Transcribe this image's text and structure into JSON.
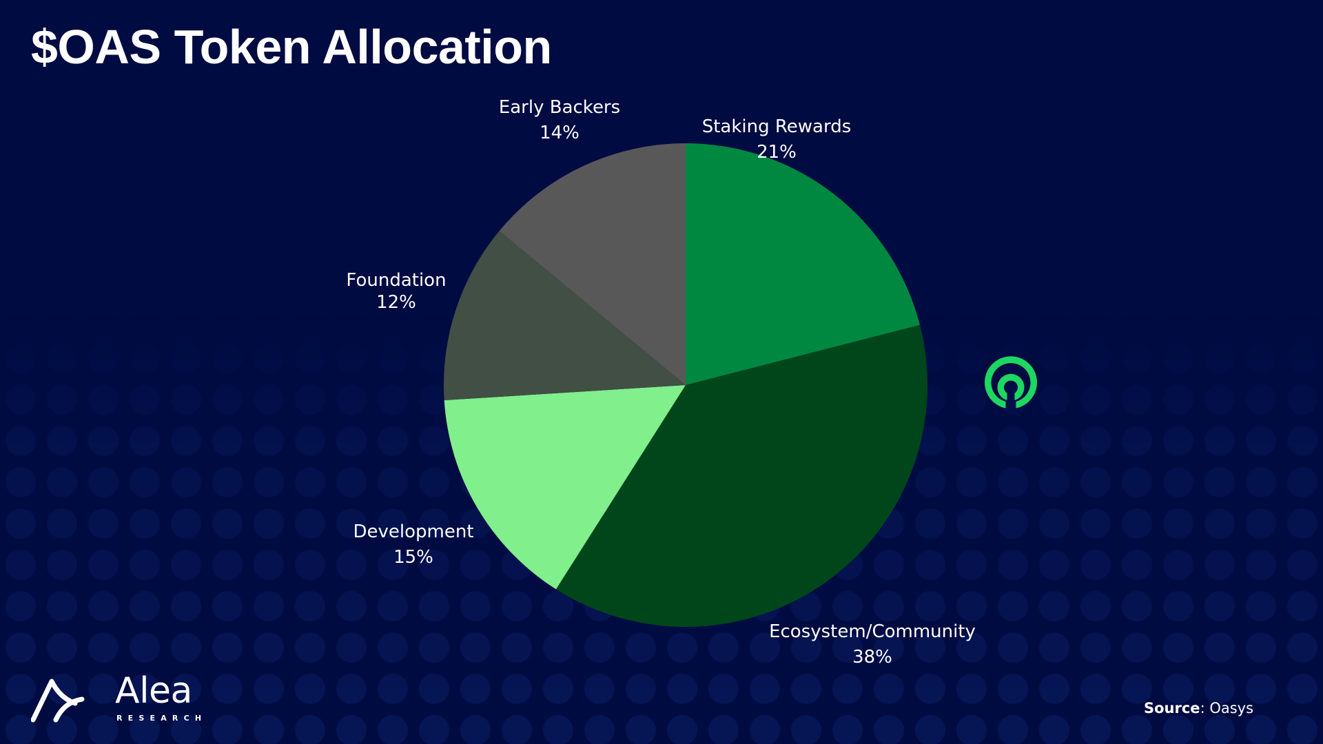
{
  "title": "$OAS Token Allocation",
  "chart_data": {
    "type": "pie",
    "title": "$OAS Token Allocation",
    "start_angle_deg": 0,
    "direction": "clockwise",
    "categories": [
      "Staking Rewards",
      "Ecosystem/Community",
      "Development",
      "Foundation",
      "Early Backers"
    ],
    "values": [
      21,
      38,
      15,
      12,
      14
    ],
    "labels": [
      "21%",
      "38%",
      "15%",
      "12%",
      "14%"
    ],
    "colors": [
      "#008841",
      "#00461b",
      "#80ef8c",
      "#424f45",
      "#585858"
    ],
    "legend": "none",
    "data_labels": "outside"
  },
  "slices": [
    {
      "name": "Staking Rewards",
      "pct": "21%"
    },
    {
      "name": "Ecosystem/Community",
      "pct": "38%"
    },
    {
      "name": "Development",
      "pct": "15%"
    },
    {
      "name": "Foundation",
      "pct": "12%"
    },
    {
      "name": "Early Backers",
      "pct": "14%"
    }
  ],
  "logo": {
    "brand": "Alea",
    "sub": "RESEARCH"
  },
  "partner_logo": "oasys-logo-icon",
  "source": {
    "label": "Source",
    "value": ": Oasys"
  },
  "colors": {
    "background": "#000b42",
    "accent_green": "#1ed760"
  }
}
